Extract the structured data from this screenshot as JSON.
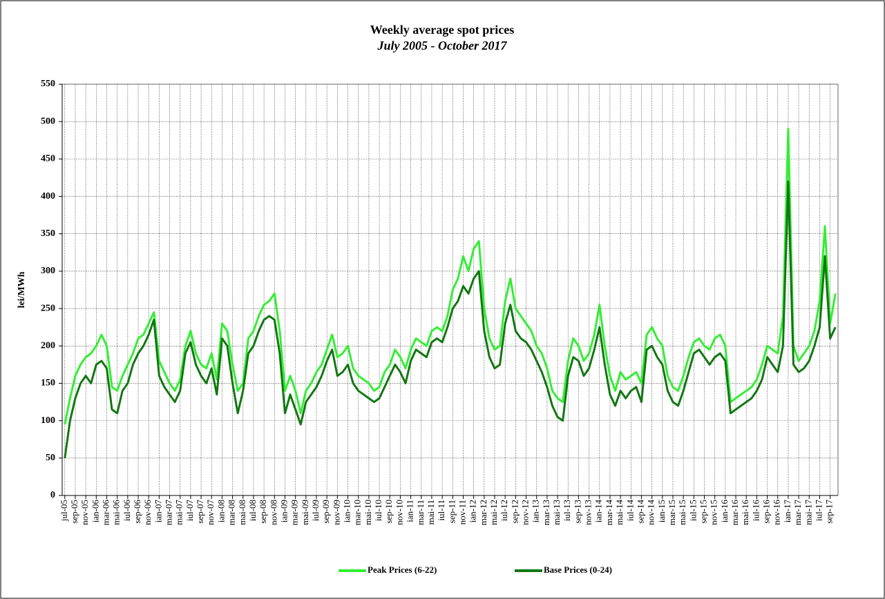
{
  "chart_data": {
    "type": "line",
    "title": "Weekly average spot prices",
    "subtitle": "July 2005 -  October 2017",
    "y_label": "lei/MWh",
    "categories": [
      "jul-05",
      null,
      "sep-05",
      null,
      "nov-05",
      null,
      "ian-06",
      null,
      "mar-06",
      null,
      "mai-06",
      null,
      "iul-06",
      null,
      "sep-06",
      null,
      "nov-06",
      null,
      "ian-07",
      null,
      "mar-07",
      null,
      "mai-07",
      null,
      "iul-07",
      null,
      "sep-07",
      null,
      "nov-07",
      null,
      "ian-08",
      null,
      "mar-08",
      null,
      "mai-08",
      null,
      "iul-08",
      null,
      "sep-08",
      null,
      "nov-08",
      null,
      "ian-09",
      null,
      "mar-09",
      null,
      "mai-09",
      null,
      "iul-09",
      null,
      "sep-09",
      null,
      "nov-09",
      null,
      "ian-10",
      null,
      "mar-10",
      null,
      "mai-10",
      null,
      "iul-10",
      null,
      "sep-10",
      null,
      "nov-10",
      null,
      "ian-11",
      null,
      "mar-11",
      null,
      "mai-11",
      null,
      "iul-11",
      null,
      "sep-11",
      null,
      "nov-11",
      null,
      "ian-12",
      null,
      "mar-12",
      null,
      "mai-12",
      null,
      "iul-12",
      null,
      "sep-12",
      null,
      "nov-12",
      null,
      "ian-13",
      null,
      "mar-13",
      null,
      "mai-13",
      null,
      "iul-13",
      null,
      "sep-13",
      null,
      "nov-13",
      null,
      "ian-14",
      null,
      "mar-14",
      null,
      "mai-14",
      null,
      "iul-14",
      null,
      "sep-14",
      null,
      "nov-14",
      null,
      "ian-15",
      null,
      "mar-15",
      null,
      "mai-15",
      null,
      "iul-15",
      null,
      "sep-15",
      null,
      "nov-15",
      null,
      "ian-16",
      null,
      "mar-16",
      null,
      "mai-16",
      null,
      "iul-16",
      null,
      "sep-16",
      null,
      "nov-16",
      null,
      "ian-17",
      null,
      "mar-17",
      null,
      "mai-17",
      null,
      "iul-17",
      null,
      "sep-17",
      null
    ],
    "series": [
      {
        "name": "Peak Prices (6-22)",
        "color": "#33ee33",
        "values": [
          95,
          130,
          160,
          175,
          185,
          190,
          200,
          215,
          200,
          145,
          140,
          160,
          175,
          190,
          210,
          215,
          230,
          245,
          180,
          165,
          150,
          140,
          155,
          200,
          220,
          190,
          175,
          170,
          190,
          155,
          230,
          220,
          175,
          140,
          150,
          210,
          220,
          240,
          255,
          260,
          270,
          220,
          140,
          160,
          140,
          110,
          140,
          150,
          165,
          175,
          195,
          215,
          185,
          190,
          200,
          170,
          160,
          155,
          150,
          140,
          145,
          165,
          175,
          195,
          185,
          170,
          195,
          210,
          205,
          200,
          220,
          225,
          220,
          240,
          275,
          290,
          320,
          300,
          330,
          340,
          250,
          210,
          195,
          200,
          260,
          290,
          250,
          240,
          230,
          220,
          200,
          190,
          170,
          140,
          130,
          125,
          180,
          210,
          200,
          180,
          190,
          215,
          255,
          200,
          160,
          140,
          165,
          155,
          160,
          165,
          150,
          215,
          225,
          210,
          200,
          160,
          145,
          140,
          160,
          185,
          205,
          210,
          200,
          195,
          210,
          215,
          200,
          125,
          130,
          135,
          140,
          145,
          155,
          175,
          200,
          195,
          190,
          240,
          490,
          200,
          180,
          190,
          200,
          220,
          260,
          360,
          230,
          270
        ]
      },
      {
        "name": "Base Prices (0-24)",
        "color": "#117711",
        "values": [
          50,
          100,
          130,
          150,
          160,
          150,
          175,
          180,
          170,
          115,
          110,
          140,
          150,
          175,
          190,
          200,
          215,
          235,
          160,
          145,
          135,
          125,
          140,
          190,
          205,
          175,
          160,
          150,
          170,
          135,
          210,
          200,
          150,
          110,
          140,
          190,
          200,
          220,
          235,
          240,
          235,
          190,
          110,
          135,
          115,
          95,
          125,
          135,
          145,
          160,
          180,
          195,
          160,
          165,
          175,
          150,
          140,
          135,
          130,
          125,
          130,
          145,
          160,
          175,
          165,
          150,
          180,
          195,
          190,
          185,
          205,
          210,
          205,
          225,
          250,
          260,
          280,
          270,
          290,
          300,
          220,
          185,
          170,
          175,
          230,
          255,
          220,
          210,
          205,
          195,
          180,
          165,
          145,
          120,
          105,
          100,
          160,
          185,
          180,
          160,
          170,
          195,
          225,
          175,
          135,
          120,
          140,
          130,
          140,
          145,
          125,
          195,
          200,
          185,
          175,
          140,
          125,
          120,
          140,
          165,
          190,
          195,
          185,
          175,
          185,
          190,
          180,
          110,
          115,
          120,
          125,
          130,
          140,
          155,
          185,
          175,
          165,
          200,
          420,
          175,
          165,
          170,
          180,
          200,
          225,
          320,
          210,
          225
        ]
      }
    ],
    "ylim": [
      0,
      550
    ],
    "yticks": [
      0,
      50,
      100,
      150,
      200,
      250,
      300,
      350,
      400,
      450,
      500,
      550
    ],
    "grid": true,
    "legend": "bottom"
  }
}
